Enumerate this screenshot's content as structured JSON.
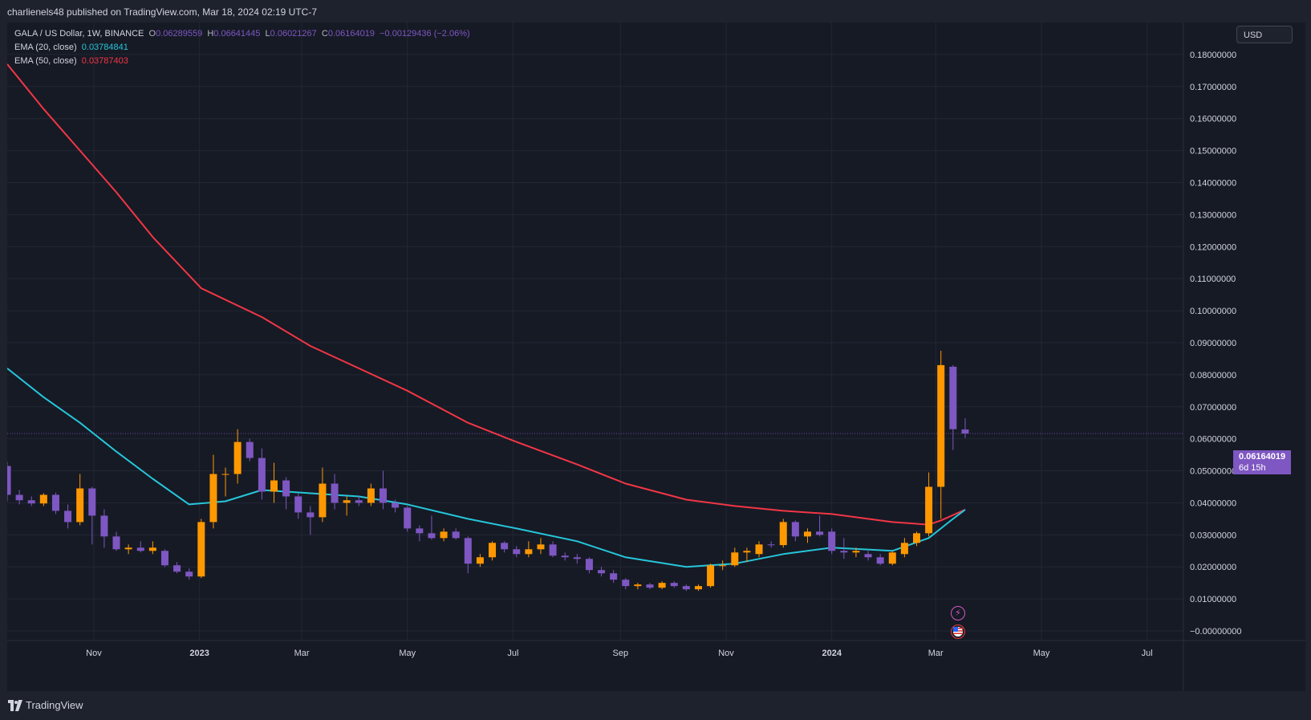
{
  "publish": {
    "text": "charlienels48 published on TradingView.com, Mar 18, 2024 02:19 UTC-7"
  },
  "legend": {
    "symbol": "GALA / US Dollar, 1W, BINANCE",
    "open_label": "O",
    "open": "0.06289559",
    "high_label": "H",
    "high": "0.06641445",
    "low_label": "L",
    "low": "0.06021267",
    "close_label": "C",
    "close": "0.06164019",
    "change": "−0.00129436 (−2.06%)",
    "ema20_label": "EMA (20, close)",
    "ema20_value": "0.03784841",
    "ema50_label": "EMA (50, close)",
    "ema50_value": "0.03787403"
  },
  "currency": {
    "label": "USD"
  },
  "last_price": {
    "price": "0.06164019",
    "countdown": "6d 15h"
  },
  "markers": {
    "m1_icon": "lightning-icon",
    "m2_icon": "us-flag-icon"
  },
  "footer": {
    "brand": "TradingView"
  },
  "colors": {
    "up": "#ff9800",
    "down": "#7e57c2",
    "ema20": "#26c6da",
    "ema50": "#f23645",
    "grid": "#232735",
    "axis_text": "#d1d4dc"
  },
  "chart_data": {
    "type": "candlestick",
    "interval": "1W",
    "x_range": [
      "2022-09-12",
      "2024-07-22"
    ],
    "y_range": [
      -0.003,
      0.19
    ],
    "grid": true,
    "x_ticks": [
      {
        "label": "Nov",
        "date": "2022-11-01"
      },
      {
        "label": "2023",
        "date": "2023-01-01"
      },
      {
        "label": "Mar",
        "date": "2023-03-01"
      },
      {
        "label": "May",
        "date": "2023-05-01"
      },
      {
        "label": "Jul",
        "date": "2023-07-01"
      },
      {
        "label": "Sep",
        "date": "2023-09-01"
      },
      {
        "label": "Nov",
        "date": "2023-11-01"
      },
      {
        "label": "2024",
        "date": "2024-01-01"
      },
      {
        "label": "Mar",
        "date": "2024-03-01"
      },
      {
        "label": "May",
        "date": "2024-05-01"
      },
      {
        "label": "Jul",
        "date": "2024-07-01"
      }
    ],
    "y_ticks": [
      "0.18000000",
      "0.17000000",
      "0.16000000",
      "0.15000000",
      "0.14000000",
      "0.13000000",
      "0.12000000",
      "0.11000000",
      "0.10000000",
      "0.09000000",
      "0.08000000",
      "0.07000000",
      "0.06000000",
      "0.05000000",
      "0.04000000",
      "0.03000000",
      "0.02000000",
      "0.01000000",
      "−0.00000000"
    ],
    "y_tick_values": [
      0.18,
      0.17,
      0.16,
      0.15,
      0.14,
      0.13,
      0.12,
      0.11,
      0.1,
      0.09,
      0.08,
      0.07,
      0.06,
      0.05,
      0.04,
      0.03,
      0.02,
      0.01,
      0.0
    ],
    "candles": [
      {
        "date": "2022-09-12",
        "o": 0.0515,
        "h": 0.0528,
        "l": 0.0405,
        "c": 0.0425
      },
      {
        "date": "2022-09-19",
        "o": 0.0425,
        "h": 0.044,
        "l": 0.0395,
        "c": 0.0408
      },
      {
        "date": "2022-09-26",
        "o": 0.0408,
        "h": 0.042,
        "l": 0.039,
        "c": 0.0398
      },
      {
        "date": "2022-10-03",
        "o": 0.0398,
        "h": 0.043,
        "l": 0.039,
        "c": 0.0425
      },
      {
        "date": "2022-10-10",
        "o": 0.0425,
        "h": 0.0432,
        "l": 0.0365,
        "c": 0.0375
      },
      {
        "date": "2022-10-17",
        "o": 0.0375,
        "h": 0.0395,
        "l": 0.032,
        "c": 0.034
      },
      {
        "date": "2022-10-24",
        "o": 0.034,
        "h": 0.049,
        "l": 0.033,
        "c": 0.0445
      },
      {
        "date": "2022-10-31",
        "o": 0.0445,
        "h": 0.045,
        "l": 0.027,
        "c": 0.036
      },
      {
        "date": "2022-11-07",
        "o": 0.036,
        "h": 0.038,
        "l": 0.026,
        "c": 0.0295
      },
      {
        "date": "2022-11-14",
        "o": 0.0295,
        "h": 0.031,
        "l": 0.025,
        "c": 0.0255
      },
      {
        "date": "2022-11-21",
        "o": 0.0255,
        "h": 0.027,
        "l": 0.024,
        "c": 0.026
      },
      {
        "date": "2022-11-28",
        "o": 0.026,
        "h": 0.028,
        "l": 0.0245,
        "c": 0.025
      },
      {
        "date": "2022-12-05",
        "o": 0.025,
        "h": 0.028,
        "l": 0.024,
        "c": 0.026
      },
      {
        "date": "2022-12-12",
        "o": 0.025,
        "h": 0.0255,
        "l": 0.02,
        "c": 0.0205
      },
      {
        "date": "2022-12-19",
        "o": 0.0205,
        "h": 0.0215,
        "l": 0.018,
        "c": 0.0185
      },
      {
        "date": "2022-12-26",
        "o": 0.0185,
        "h": 0.0195,
        "l": 0.016,
        "c": 0.017
      },
      {
        "date": "2023-01-02",
        "o": 0.017,
        "h": 0.035,
        "l": 0.0165,
        "c": 0.034
      },
      {
        "date": "2023-01-09",
        "o": 0.034,
        "h": 0.055,
        "l": 0.032,
        "c": 0.049
      },
      {
        "date": "2023-01-16",
        "o": 0.049,
        "h": 0.051,
        "l": 0.042,
        "c": 0.049
      },
      {
        "date": "2023-01-23",
        "o": 0.049,
        "h": 0.063,
        "l": 0.046,
        "c": 0.059
      },
      {
        "date": "2023-01-30",
        "o": 0.059,
        "h": 0.06,
        "l": 0.053,
        "c": 0.054
      },
      {
        "date": "2023-02-06",
        "o": 0.054,
        "h": 0.057,
        "l": 0.041,
        "c": 0.0435
      },
      {
        "date": "2023-02-13",
        "o": 0.0435,
        "h": 0.0525,
        "l": 0.04,
        "c": 0.047
      },
      {
        "date": "2023-02-20",
        "o": 0.047,
        "h": 0.048,
        "l": 0.038,
        "c": 0.042
      },
      {
        "date": "2023-02-27",
        "o": 0.042,
        "h": 0.043,
        "l": 0.035,
        "c": 0.037
      },
      {
        "date": "2023-03-06",
        "o": 0.037,
        "h": 0.039,
        "l": 0.03,
        "c": 0.0355
      },
      {
        "date": "2023-03-13",
        "o": 0.0355,
        "h": 0.051,
        "l": 0.034,
        "c": 0.046
      },
      {
        "date": "2023-03-20",
        "o": 0.046,
        "h": 0.049,
        "l": 0.038,
        "c": 0.04
      },
      {
        "date": "2023-03-27",
        "o": 0.04,
        "h": 0.042,
        "l": 0.036,
        "c": 0.0408
      },
      {
        "date": "2023-04-03",
        "o": 0.0408,
        "h": 0.042,
        "l": 0.039,
        "c": 0.04
      },
      {
        "date": "2023-04-10",
        "o": 0.04,
        "h": 0.046,
        "l": 0.039,
        "c": 0.0445
      },
      {
        "date": "2023-04-17",
        "o": 0.0445,
        "h": 0.05,
        "l": 0.038,
        "c": 0.04
      },
      {
        "date": "2023-04-24",
        "o": 0.04,
        "h": 0.041,
        "l": 0.037,
        "c": 0.0385
      },
      {
        "date": "2023-05-01",
        "o": 0.0385,
        "h": 0.039,
        "l": 0.031,
        "c": 0.032
      },
      {
        "date": "2023-05-08",
        "o": 0.032,
        "h": 0.033,
        "l": 0.028,
        "c": 0.0305
      },
      {
        "date": "2023-05-15",
        "o": 0.0305,
        "h": 0.036,
        "l": 0.0285,
        "c": 0.029
      },
      {
        "date": "2023-05-22",
        "o": 0.029,
        "h": 0.032,
        "l": 0.028,
        "c": 0.031
      },
      {
        "date": "2023-05-29",
        "o": 0.031,
        "h": 0.032,
        "l": 0.0285,
        "c": 0.029
      },
      {
        "date": "2023-06-05",
        "o": 0.029,
        "h": 0.0295,
        "l": 0.018,
        "c": 0.021
      },
      {
        "date": "2023-06-12",
        "o": 0.021,
        "h": 0.024,
        "l": 0.02,
        "c": 0.023
      },
      {
        "date": "2023-06-19",
        "o": 0.023,
        "h": 0.028,
        "l": 0.022,
        "c": 0.0275
      },
      {
        "date": "2023-06-26",
        "o": 0.0275,
        "h": 0.028,
        "l": 0.0245,
        "c": 0.0255
      },
      {
        "date": "2023-07-03",
        "o": 0.0255,
        "h": 0.0265,
        "l": 0.023,
        "c": 0.024
      },
      {
        "date": "2023-07-10",
        "o": 0.024,
        "h": 0.028,
        "l": 0.023,
        "c": 0.0255
      },
      {
        "date": "2023-07-17",
        "o": 0.0255,
        "h": 0.029,
        "l": 0.024,
        "c": 0.027
      },
      {
        "date": "2023-07-24",
        "o": 0.027,
        "h": 0.028,
        "l": 0.023,
        "c": 0.0235
      },
      {
        "date": "2023-07-31",
        "o": 0.0235,
        "h": 0.0245,
        "l": 0.022,
        "c": 0.023
      },
      {
        "date": "2023-08-07",
        "o": 0.023,
        "h": 0.024,
        "l": 0.021,
        "c": 0.0225
      },
      {
        "date": "2023-08-14",
        "o": 0.0225,
        "h": 0.023,
        "l": 0.018,
        "c": 0.019
      },
      {
        "date": "2023-08-21",
        "o": 0.019,
        "h": 0.02,
        "l": 0.017,
        "c": 0.018
      },
      {
        "date": "2023-08-28",
        "o": 0.018,
        "h": 0.019,
        "l": 0.015,
        "c": 0.016
      },
      {
        "date": "2023-09-04",
        "o": 0.016,
        "h": 0.0165,
        "l": 0.013,
        "c": 0.014
      },
      {
        "date": "2023-09-11",
        "o": 0.014,
        "h": 0.015,
        "l": 0.013,
        "c": 0.0145
      },
      {
        "date": "2023-09-18",
        "o": 0.0145,
        "h": 0.015,
        "l": 0.013,
        "c": 0.0135
      },
      {
        "date": "2023-09-25",
        "o": 0.0135,
        "h": 0.0155,
        "l": 0.013,
        "c": 0.015
      },
      {
        "date": "2023-10-02",
        "o": 0.015,
        "h": 0.0155,
        "l": 0.0135,
        "c": 0.014
      },
      {
        "date": "2023-10-09",
        "o": 0.014,
        "h": 0.0145,
        "l": 0.0125,
        "c": 0.013
      },
      {
        "date": "2023-10-16",
        "o": 0.013,
        "h": 0.0145,
        "l": 0.0125,
        "c": 0.014
      },
      {
        "date": "2023-10-23",
        "o": 0.014,
        "h": 0.021,
        "l": 0.0135,
        "c": 0.0205
      },
      {
        "date": "2023-10-30",
        "o": 0.0205,
        "h": 0.022,
        "l": 0.019,
        "c": 0.0205
      },
      {
        "date": "2023-11-06",
        "o": 0.0205,
        "h": 0.026,
        "l": 0.02,
        "c": 0.0245
      },
      {
        "date": "2023-11-13",
        "o": 0.0245,
        "h": 0.026,
        "l": 0.0215,
        "c": 0.025
      },
      {
        "date": "2023-11-20",
        "o": 0.024,
        "h": 0.028,
        "l": 0.023,
        "c": 0.027
      },
      {
        "date": "2023-11-27",
        "o": 0.027,
        "h": 0.028,
        "l": 0.026,
        "c": 0.0268
      },
      {
        "date": "2023-12-04",
        "o": 0.0268,
        "h": 0.035,
        "l": 0.026,
        "c": 0.034
      },
      {
        "date": "2023-12-11",
        "o": 0.034,
        "h": 0.0345,
        "l": 0.028,
        "c": 0.0295
      },
      {
        "date": "2023-12-18",
        "o": 0.0295,
        "h": 0.032,
        "l": 0.0275,
        "c": 0.031
      },
      {
        "date": "2023-12-25",
        "o": 0.031,
        "h": 0.036,
        "l": 0.0295,
        "c": 0.03
      },
      {
        "date": "2024-01-01",
        "o": 0.031,
        "h": 0.032,
        "l": 0.024,
        "c": 0.025
      },
      {
        "date": "2024-01-08",
        "o": 0.025,
        "h": 0.029,
        "l": 0.0225,
        "c": 0.0245
      },
      {
        "date": "2024-01-15",
        "o": 0.0245,
        "h": 0.026,
        "l": 0.023,
        "c": 0.025
      },
      {
        "date": "2024-01-22",
        "o": 0.024,
        "h": 0.025,
        "l": 0.022,
        "c": 0.023
      },
      {
        "date": "2024-01-29",
        "o": 0.023,
        "h": 0.024,
        "l": 0.0205,
        "c": 0.021
      },
      {
        "date": "2024-02-05",
        "o": 0.021,
        "h": 0.025,
        "l": 0.0205,
        "c": 0.0245
      },
      {
        "date": "2024-02-12",
        "o": 0.024,
        "h": 0.029,
        "l": 0.023,
        "c": 0.0275
      },
      {
        "date": "2024-02-19",
        "o": 0.0275,
        "h": 0.031,
        "l": 0.0265,
        "c": 0.0305
      },
      {
        "date": "2024-02-26",
        "o": 0.0305,
        "h": 0.0495,
        "l": 0.0295,
        "c": 0.045
      },
      {
        "date": "2024-03-04",
        "o": 0.045,
        "h": 0.0875,
        "l": 0.035,
        "c": 0.083
      },
      {
        "date": "2024-03-11",
        "o": 0.0825,
        "h": 0.083,
        "l": 0.0565,
        "c": 0.063
      },
      {
        "date": "2024-03-18",
        "o": 0.06289559,
        "h": 0.06641445,
        "l": 0.06021267,
        "c": 0.06164019
      }
    ],
    "ema20": [
      {
        "date": "2022-09-12",
        "v": 0.082
      },
      {
        "date": "2022-10-03",
        "v": 0.073
      },
      {
        "date": "2022-10-24",
        "v": 0.065
      },
      {
        "date": "2022-11-14",
        "v": 0.056
      },
      {
        "date": "2022-12-05",
        "v": 0.0475
      },
      {
        "date": "2022-12-26",
        "v": 0.0395
      },
      {
        "date": "2023-01-16",
        "v": 0.0405
      },
      {
        "date": "2023-02-06",
        "v": 0.044
      },
      {
        "date": "2023-03-06",
        "v": 0.043
      },
      {
        "date": "2023-04-03",
        "v": 0.042
      },
      {
        "date": "2023-05-01",
        "v": 0.0395
      },
      {
        "date": "2023-06-05",
        "v": 0.035
      },
      {
        "date": "2023-07-03",
        "v": 0.032
      },
      {
        "date": "2023-08-07",
        "v": 0.028
      },
      {
        "date": "2023-09-04",
        "v": 0.023
      },
      {
        "date": "2023-10-09",
        "v": 0.02
      },
      {
        "date": "2023-11-06",
        "v": 0.021
      },
      {
        "date": "2023-12-04",
        "v": 0.024
      },
      {
        "date": "2024-01-01",
        "v": 0.026
      },
      {
        "date": "2024-02-05",
        "v": 0.025
      },
      {
        "date": "2024-02-26",
        "v": 0.029
      },
      {
        "date": "2024-03-04",
        "v": 0.032
      },
      {
        "date": "2024-03-11",
        "v": 0.035
      },
      {
        "date": "2024-03-18",
        "v": 0.03784841
      }
    ],
    "ema50": [
      {
        "date": "2022-09-12",
        "v": 0.177
      },
      {
        "date": "2022-10-03",
        "v": 0.163
      },
      {
        "date": "2022-10-24",
        "v": 0.15
      },
      {
        "date": "2022-11-14",
        "v": 0.137
      },
      {
        "date": "2022-12-05",
        "v": 0.123
      },
      {
        "date": "2023-01-02",
        "v": 0.107
      },
      {
        "date": "2023-02-06",
        "v": 0.098
      },
      {
        "date": "2023-03-06",
        "v": 0.089
      },
      {
        "date": "2023-04-03",
        "v": 0.082
      },
      {
        "date": "2023-05-01",
        "v": 0.075
      },
      {
        "date": "2023-06-05",
        "v": 0.065
      },
      {
        "date": "2023-07-03",
        "v": 0.059
      },
      {
        "date": "2023-08-07",
        "v": 0.052
      },
      {
        "date": "2023-09-04",
        "v": 0.046
      },
      {
        "date": "2023-10-09",
        "v": 0.041
      },
      {
        "date": "2023-11-06",
        "v": 0.039
      },
      {
        "date": "2023-12-04",
        "v": 0.0375
      },
      {
        "date": "2024-01-01",
        "v": 0.0365
      },
      {
        "date": "2024-02-05",
        "v": 0.034
      },
      {
        "date": "2024-02-26",
        "v": 0.0332
      },
      {
        "date": "2024-03-04",
        "v": 0.0345
      },
      {
        "date": "2024-03-18",
        "v": 0.03787403
      }
    ],
    "last_price_line": 0.06164019
  }
}
